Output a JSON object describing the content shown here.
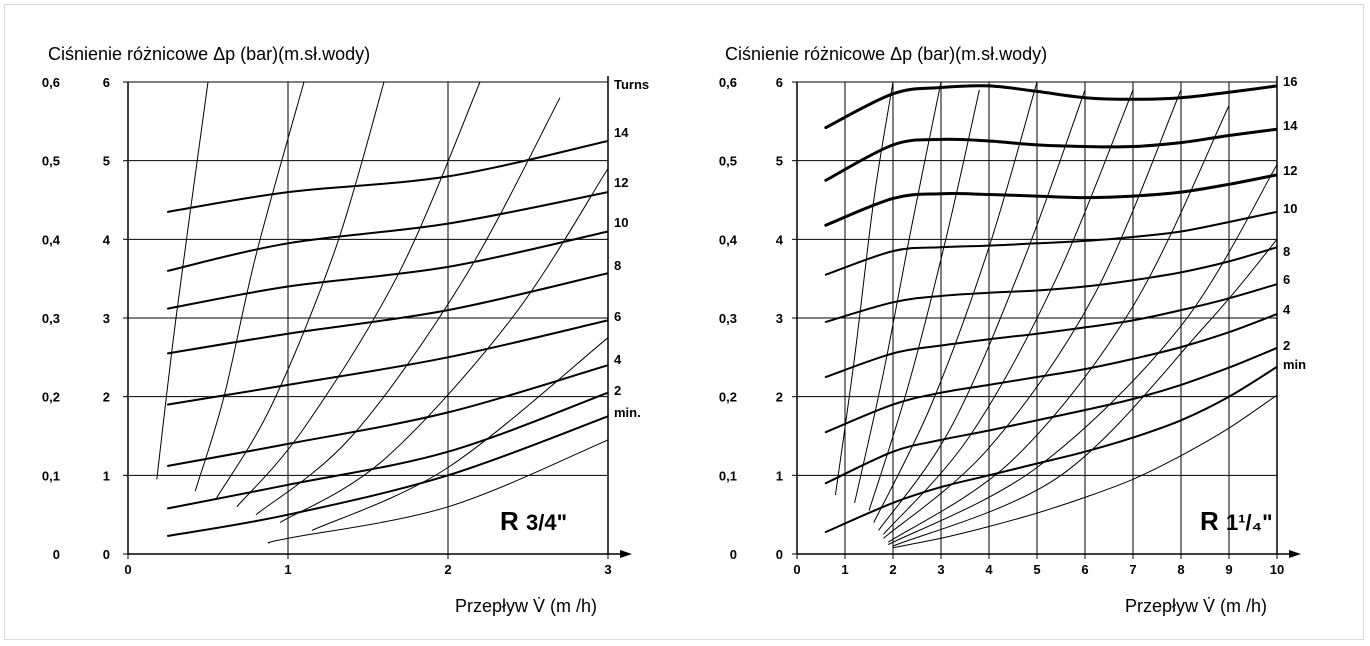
{
  "colors": {
    "line": "#000000",
    "background": "#ffffff",
    "frame": "#dcdcdc"
  },
  "chart_data": [
    {
      "type": "line",
      "model": "R",
      "model_fraction": "3/4\"",
      "ylabel": "Ciśnienie różnicowe Δp (bar)(m.sł.wody)",
      "xlabel": "Przepływ V̇ (m /h)",
      "xlim": [
        0,
        3
      ],
      "ylim": [
        0,
        6
      ],
      "x_ticks": [
        "0",
        "1",
        "2",
        "3"
      ],
      "x_tick_values": [
        0,
        1,
        2,
        3
      ],
      "y_ticks_m": [
        "0",
        "1",
        "2",
        "3",
        "4",
        "5",
        "6"
      ],
      "y_ticks_bar": [
        "0",
        "0,1",
        "0,2",
        "0,3",
        "0,4",
        "0,5",
        "0,6"
      ],
      "series_title": "Turns",
      "series": [
        {
          "name": "14",
          "width": 2,
          "x": [
            0.25,
            1,
            2,
            3
          ],
          "y": [
            4.35,
            4.6,
            4.8,
            5.25
          ]
        },
        {
          "name": "12",
          "width": 2,
          "x": [
            0.25,
            1,
            2,
            3
          ],
          "y": [
            3.6,
            3.95,
            4.2,
            4.6
          ]
        },
        {
          "name": "10",
          "width": 2,
          "x": [
            0.25,
            1,
            2,
            3
          ],
          "y": [
            3.12,
            3.4,
            3.65,
            4.1
          ]
        },
        {
          "name": "8",
          "width": 2,
          "x": [
            0.25,
            1,
            2,
            3
          ],
          "y": [
            2.55,
            2.8,
            3.1,
            3.57
          ]
        },
        {
          "name": "6",
          "width": 2,
          "x": [
            0.25,
            1,
            2,
            3
          ],
          "y": [
            1.9,
            2.15,
            2.5,
            2.97
          ]
        },
        {
          "name": "4",
          "width": 2,
          "x": [
            0.25,
            1,
            2,
            3
          ],
          "y": [
            1.12,
            1.4,
            1.8,
            2.4
          ]
        },
        {
          "name": "2",
          "width": 2,
          "x": [
            0.25,
            1,
            2,
            3
          ],
          "y": [
            0.58,
            0.88,
            1.3,
            2.05
          ]
        },
        {
          "name": "min.",
          "width": 2,
          "x": [
            0.25,
            1,
            2,
            3
          ],
          "y": [
            0.23,
            0.5,
            1.0,
            1.75
          ]
        },
        {
          "name": "",
          "width": 1,
          "x": [
            0.88,
            1,
            2,
            3
          ],
          "y": [
            0.14,
            0.2,
            0.6,
            1.45
          ]
        }
      ],
      "auxiliary_curves": [
        {
          "x": [
            0.18,
            0.3,
            0.5
          ],
          "y": [
            0.95,
            3.0,
            6.0
          ]
        },
        {
          "x": [
            0.42,
            0.6,
            0.8,
            1.1
          ],
          "y": [
            0.8,
            2.0,
            3.8,
            6.0
          ]
        },
        {
          "x": [
            0.55,
            0.9,
            1.3,
            1.6
          ],
          "y": [
            0.7,
            1.9,
            3.9,
            6.0
          ]
        },
        {
          "x": [
            0.68,
            1.1,
            1.7,
            2.2
          ],
          "y": [
            0.6,
            1.6,
            3.6,
            6.0
          ]
        },
        {
          "x": [
            0.8,
            1.4,
            2.1,
            2.7
          ],
          "y": [
            0.5,
            1.5,
            3.5,
            5.8
          ]
        },
        {
          "x": [
            0.95,
            1.6,
            2.4,
            3.0
          ],
          "y": [
            0.4,
            1.2,
            3.0,
            4.9
          ]
        },
        {
          "x": [
            1.15,
            2.0,
            3.0
          ],
          "y": [
            0.3,
            1.1,
            2.75
          ]
        }
      ]
    },
    {
      "type": "line",
      "model": "R",
      "model_fraction": "1¹/₄\"",
      "ylabel": "Ciśnienie różnicowe Δp (bar)(m.sł.wody)",
      "xlabel": "Przepływ V̇ (m /h)",
      "xlim": [
        0,
        10
      ],
      "ylim": [
        0,
        6
      ],
      "x_ticks": [
        "0",
        "1",
        "2",
        "3",
        "4",
        "5",
        "6",
        "7",
        "8",
        "9",
        "10"
      ],
      "x_tick_values": [
        0,
        1,
        2,
        3,
        4,
        5,
        6,
        7,
        8,
        9,
        10
      ],
      "y_ticks_m": [
        "0",
        "1",
        "2",
        "3",
        "4",
        "5",
        "6"
      ],
      "y_ticks_bar": [
        "0",
        "0,1",
        "0,2",
        "0,3",
        "0,4",
        "0,5",
        "0,6"
      ],
      "series": [
        {
          "name": "16",
          "width": 3,
          "x": [
            0.6,
            2,
            3,
            4,
            5,
            6,
            7,
            8,
            9,
            10
          ],
          "y": [
            5.42,
            5.85,
            5.93,
            5.95,
            5.88,
            5.8,
            5.78,
            5.8,
            5.87,
            5.95
          ]
        },
        {
          "name": "14",
          "width": 3,
          "x": [
            0.6,
            2,
            3,
            4,
            5,
            6,
            7,
            8,
            9,
            10
          ],
          "y": [
            4.75,
            5.2,
            5.27,
            5.25,
            5.2,
            5.18,
            5.18,
            5.23,
            5.32,
            5.4
          ]
        },
        {
          "name": "12",
          "width": 3,
          "x": [
            0.6,
            2,
            3,
            4,
            5,
            6,
            7,
            8,
            9,
            10
          ],
          "y": [
            4.18,
            4.52,
            4.58,
            4.57,
            4.55,
            4.53,
            4.55,
            4.6,
            4.7,
            4.82
          ]
        },
        {
          "name": "10",
          "width": 2,
          "x": [
            0.6,
            2,
            3,
            4,
            5,
            6,
            7,
            8,
            9,
            10
          ],
          "y": [
            3.55,
            3.85,
            3.9,
            3.92,
            3.95,
            3.98,
            4.03,
            4.1,
            4.22,
            4.35
          ]
        },
        {
          "name": "8",
          "width": 2,
          "x": [
            0.6,
            2,
            3,
            4,
            5,
            6,
            7,
            8,
            9,
            10
          ],
          "y": [
            2.95,
            3.2,
            3.28,
            3.32,
            3.35,
            3.4,
            3.48,
            3.58,
            3.72,
            3.9
          ]
        },
        {
          "name": "6",
          "width": 2,
          "x": [
            0.6,
            2,
            3,
            4,
            5,
            6,
            7,
            8,
            9,
            10
          ],
          "y": [
            2.25,
            2.55,
            2.65,
            2.73,
            2.8,
            2.88,
            2.97,
            3.1,
            3.25,
            3.43
          ]
        },
        {
          "name": "4",
          "width": 2,
          "x": [
            0.6,
            2,
            3,
            4,
            5,
            6,
            7,
            8,
            9,
            10
          ],
          "y": [
            1.55,
            1.9,
            2.05,
            2.15,
            2.25,
            2.35,
            2.48,
            2.63,
            2.82,
            3.05
          ]
        },
        {
          "name": "2",
          "width": 2,
          "x": [
            0.6,
            2,
            3,
            4,
            5,
            6,
            7,
            8,
            9,
            10
          ],
          "y": [
            0.9,
            1.3,
            1.45,
            1.57,
            1.7,
            1.83,
            1.97,
            2.15,
            2.37,
            2.62
          ]
        },
        {
          "name": "min",
          "width": 2,
          "x": [
            0.6,
            2,
            3,
            4,
            5,
            6,
            7,
            8,
            9,
            10
          ],
          "y": [
            0.28,
            0.65,
            0.85,
            1.0,
            1.15,
            1.3,
            1.48,
            1.7,
            2.0,
            2.38
          ]
        },
        {
          "name": "",
          "width": 1,
          "x": [
            2,
            3,
            4,
            5,
            6,
            7,
            8,
            9,
            10
          ],
          "y": [
            0.08,
            0.2,
            0.35,
            0.52,
            0.72,
            0.95,
            1.25,
            1.6,
            2.02
          ]
        }
      ],
      "auxiliary_curves": [
        {
          "x": [
            0.8,
            1.2,
            1.6,
            2.0
          ],
          "y": [
            0.75,
            2.5,
            4.5,
            6.0
          ]
        },
        {
          "x": [
            1.2,
            1.8,
            2.4,
            3.0
          ],
          "y": [
            0.65,
            2.3,
            4.2,
            6.0
          ]
        },
        {
          "x": [
            1.5,
            2.3,
            3.1,
            3.8
          ],
          "y": [
            0.55,
            2.1,
            4.0,
            5.9
          ]
        },
        {
          "x": [
            1.6,
            2.8,
            4.0,
            5.0
          ],
          "y": [
            0.4,
            1.9,
            3.9,
            6.0
          ]
        },
        {
          "x": [
            1.7,
            3.2,
            4.7,
            6.0
          ],
          "y": [
            0.3,
            1.6,
            3.7,
            5.9
          ]
        },
        {
          "x": [
            1.8,
            3.6,
            5.4,
            7.0
          ],
          "y": [
            0.25,
            1.5,
            3.5,
            5.9
          ]
        },
        {
          "x": [
            1.8,
            4.0,
            6.2,
            8.0
          ],
          "y": [
            0.2,
            1.35,
            3.3,
            5.9
          ]
        },
        {
          "x": [
            1.9,
            4.5,
            7.0,
            9.0
          ],
          "y": [
            0.15,
            1.2,
            3.15,
            5.7
          ]
        },
        {
          "x": [
            1.9,
            5.0,
            8.0,
            10.0
          ],
          "y": [
            0.12,
            1.1,
            2.9,
            4.95
          ]
        },
        {
          "x": [
            2.0,
            5.5,
            8.5,
            10.0
          ],
          "y": [
            0.1,
            1.0,
            2.9,
            4.0
          ]
        }
      ]
    }
  ]
}
